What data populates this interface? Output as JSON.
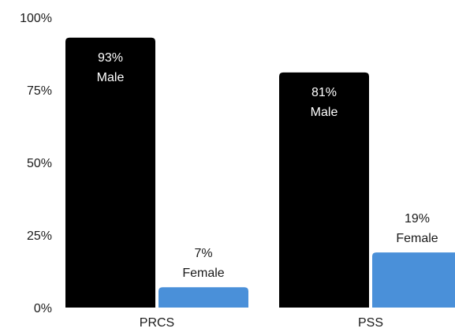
{
  "chart_data": {
    "type": "bar",
    "ylim": [
      0,
      100
    ],
    "y_ticks": [
      {
        "value": 0,
        "label": "0%"
      },
      {
        "value": 25,
        "label": "25%"
      },
      {
        "value": 50,
        "label": "50%"
      },
      {
        "value": 75,
        "label": "75%"
      },
      {
        "value": 100,
        "label": "100%"
      }
    ],
    "categories": [
      "PRCS",
      "PSS"
    ],
    "series": [
      {
        "values": [
          93,
          81
        ],
        "color": "#000000",
        "label_color": "#ffffff",
        "data_labels": [
          [
            "93%",
            "Male"
          ],
          [
            "81%",
            "Male"
          ]
        ]
      },
      {
        "values": [
          7,
          19
        ],
        "color": "#4a90d9",
        "label_color": "#1a1a1a",
        "data_labels": [
          [
            "7%",
            "Female"
          ],
          [
            "19%",
            "Female"
          ]
        ]
      }
    ],
    "grid": false,
    "legend": "none"
  }
}
